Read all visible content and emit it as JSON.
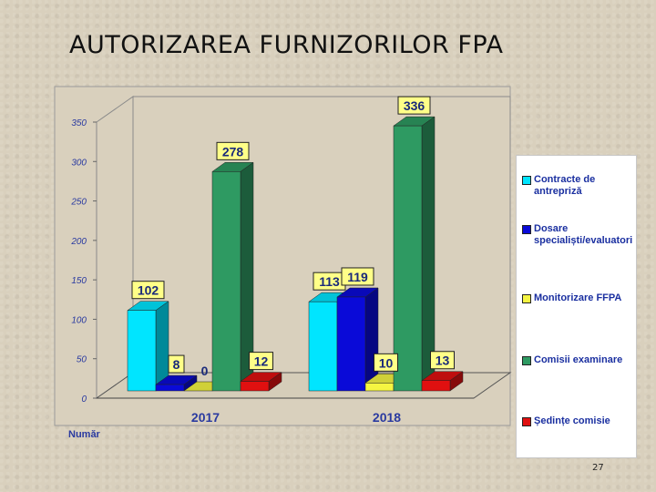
{
  "title": "AUTORIZAREA FURNIZORILOR FPA",
  "page_number": "27",
  "chart_data": {
    "type": "bar",
    "categories": [
      "2017",
      "2018"
    ],
    "ylabel": "Număr",
    "ylim": [
      0,
      350
    ],
    "yticks": [
      0,
      50,
      100,
      150,
      200,
      250,
      300,
      350
    ],
    "grid": false,
    "legend_position": "right",
    "series": [
      {
        "name": "Contracte de antrepriză",
        "color": "#00e5ff",
        "values": [
          102,
          113
        ]
      },
      {
        "name": "Dosare specialiști/evaluatori",
        "color": "#0a0ad8",
        "values": [
          8,
          119
        ]
      },
      {
        "name": "Monitorizare FFPA",
        "color": "#f5f542",
        "values": [
          0,
          10
        ]
      },
      {
        "name": "Comisii examinare",
        "color": "#2e9a62",
        "values": [
          278,
          336
        ]
      },
      {
        "name": "Ședințe comisie",
        "color": "#e01010",
        "values": [
          12,
          13
        ]
      }
    ]
  }
}
